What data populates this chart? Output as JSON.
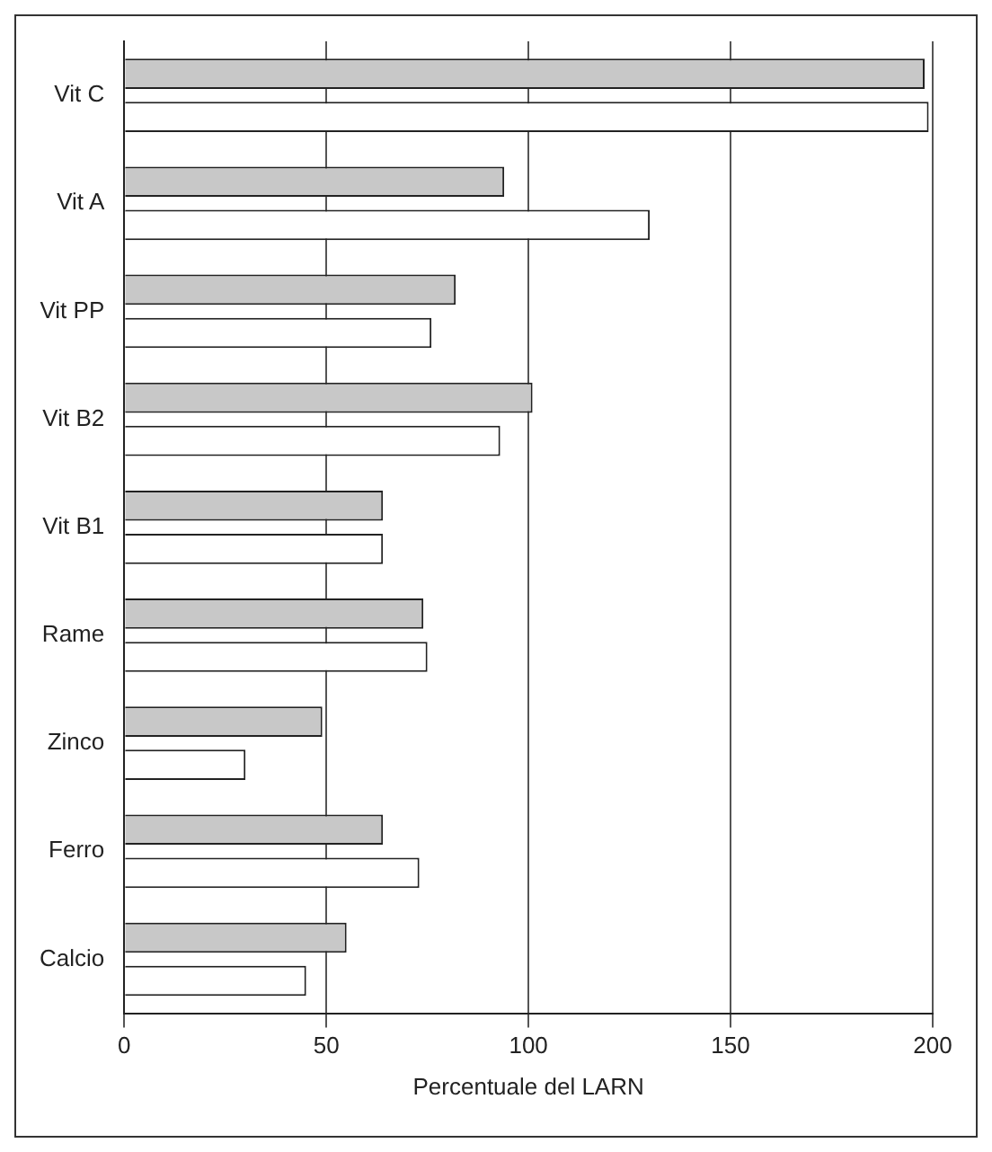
{
  "chart_data": {
    "type": "bar",
    "orientation": "horizontal",
    "xlabel": "Percentuale del LARN",
    "categories": [
      "Vit C",
      "Vit A",
      "Vit PP",
      "Vit B2",
      "Vit B1",
      "Rame",
      "Zinco",
      "Ferro",
      "Calcio"
    ],
    "series": [
      {
        "color": "#c8c8c8",
        "values": [
          198,
          94,
          82,
          101,
          64,
          74,
          49,
          64,
          55
        ]
      },
      {
        "color": "#ffffff",
        "values": [
          199,
          130,
          76,
          93,
          64,
          75,
          30,
          73,
          45
        ]
      }
    ],
    "xlim": [
      0,
      200
    ],
    "xticks": [
      0,
      50,
      100,
      150,
      200
    ],
    "grid": "x",
    "legend": false
  }
}
